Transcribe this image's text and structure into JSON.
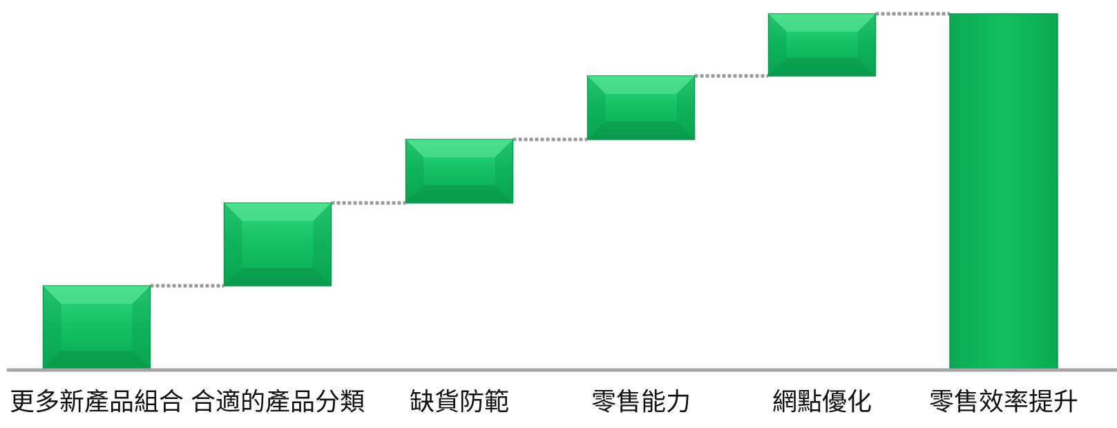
{
  "chart_data": {
    "type": "waterfall",
    "categories": [
      "更多新產品組合",
      "合適的產品分類",
      "缺貨防範",
      "零售能力",
      "網點優化",
      "零售效率提升"
    ],
    "values": [
      1.2,
      1.2,
      0.92,
      0.92,
      0.9,
      5.14
    ],
    "ylim": [
      0,
      5.2
    ],
    "title": "",
    "xlabel": "",
    "ylabel": "",
    "grid": false,
    "legend": "none",
    "connectors": "dotted",
    "bar_color": "#10b95c",
    "axis_color": "#a6a6a6",
    "connector_color": "#9a9a9a"
  }
}
